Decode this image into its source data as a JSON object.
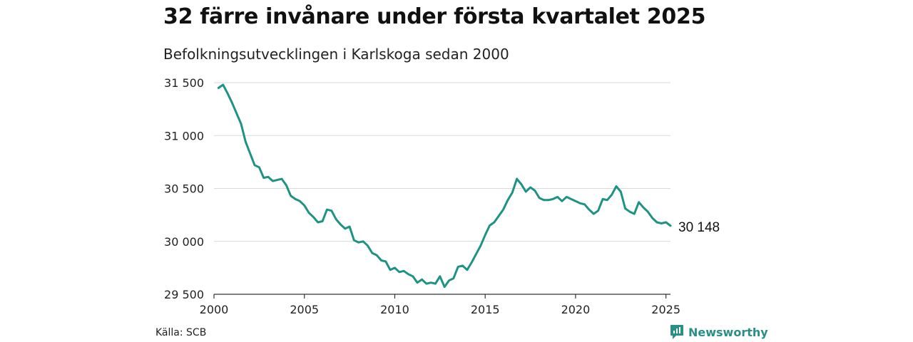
{
  "title": "32 färre invånare under första kvartalet 2025",
  "subtitle": "Befolkningsutvecklingen i Karlskoga sedan 2000",
  "source": "Källa: SCB",
  "brand": {
    "name": "Newsworthy",
    "icon": "newsworthy-logo-icon"
  },
  "colors": {
    "line": "#1f9383",
    "grid": "#d9d9d9",
    "brand": "#2a8f86"
  },
  "chart_data": {
    "type": "line",
    "title": "32 färre invånare under första kvartalet 2025",
    "xlabel": "",
    "ylabel": "",
    "x_ticks": [
      2000,
      2005,
      2010,
      2015,
      2020,
      2025
    ],
    "x_tick_labels": [
      "2000",
      "2005",
      "2010",
      "2015",
      "2020",
      "2025"
    ],
    "y_ticks": [
      29500,
      30000,
      30500,
      31000,
      31500
    ],
    "y_tick_labels": [
      "29 500",
      "30 000",
      "30 500",
      "31 000",
      "31 500"
    ],
    "xlim": [
      2000,
      2025.25
    ],
    "ylim": [
      29500,
      31500
    ],
    "grid": true,
    "end_label": "30 148",
    "series": [
      {
        "x": [
          2000.25,
          2000.5,
          2000.75,
          2001,
          2001.25,
          2001.5,
          2001.75,
          2002,
          2002.25,
          2002.5,
          2002.75,
          2003,
          2003.25,
          2003.5,
          2003.75,
          2004,
          2004.25,
          2004.5,
          2004.75,
          2005,
          2005.25,
          2005.5,
          2005.75,
          2006,
          2006.25,
          2006.5,
          2006.75,
          2007,
          2007.25,
          2007.5,
          2007.75,
          2008,
          2008.25,
          2008.5,
          2008.75,
          2009,
          2009.25,
          2009.5,
          2009.75,
          2010,
          2010.25,
          2010.5,
          2010.75,
          2011,
          2011.25,
          2011.5,
          2011.75,
          2012,
          2012.25,
          2012.5,
          2012.75,
          2013,
          2013.25,
          2013.5,
          2013.75,
          2014,
          2014.25,
          2014.5,
          2014.75,
          2015,
          2015.25,
          2015.5,
          2015.75,
          2016,
          2016.25,
          2016.5,
          2016.75,
          2017,
          2017.25,
          2017.5,
          2017.75,
          2018,
          2018.25,
          2018.5,
          2018.75,
          2019,
          2019.25,
          2019.5,
          2019.75,
          2020,
          2020.25,
          2020.5,
          2020.75,
          2021,
          2021.25,
          2021.5,
          2021.75,
          2022,
          2022.25,
          2022.5,
          2022.75,
          2023,
          2023.25,
          2023.5,
          2023.75,
          2024,
          2024.25,
          2024.5,
          2024.75,
          2025,
          2025.25
        ],
        "values": [
          31450,
          31480,
          31400,
          31310,
          31210,
          31110,
          30940,
          30830,
          30720,
          30700,
          30600,
          30610,
          30570,
          30580,
          30590,
          30530,
          30430,
          30400,
          30380,
          30340,
          30270,
          30230,
          30180,
          30190,
          30300,
          30290,
          30210,
          30160,
          30120,
          30140,
          30010,
          29990,
          30000,
          29960,
          29890,
          29870,
          29820,
          29810,
          29730,
          29750,
          29710,
          29720,
          29690,
          29670,
          29610,
          29640,
          29600,
          29610,
          29600,
          29670,
          29570,
          29630,
          29650,
          29760,
          29770,
          29730,
          29800,
          29880,
          29960,
          30060,
          30150,
          30180,
          30240,
          30300,
          30390,
          30460,
          30590,
          30540,
          30470,
          30510,
          30480,
          30410,
          30390,
          30390,
          30400,
          30420,
          30380,
          30420,
          30400,
          30380,
          30360,
          30350,
          30300,
          30260,
          30290,
          30400,
          30390,
          30440,
          30520,
          30470,
          30310,
          30280,
          30260,
          30370,
          30320,
          30280,
          30220,
          30180,
          30170,
          30180,
          30148
        ]
      }
    ]
  }
}
